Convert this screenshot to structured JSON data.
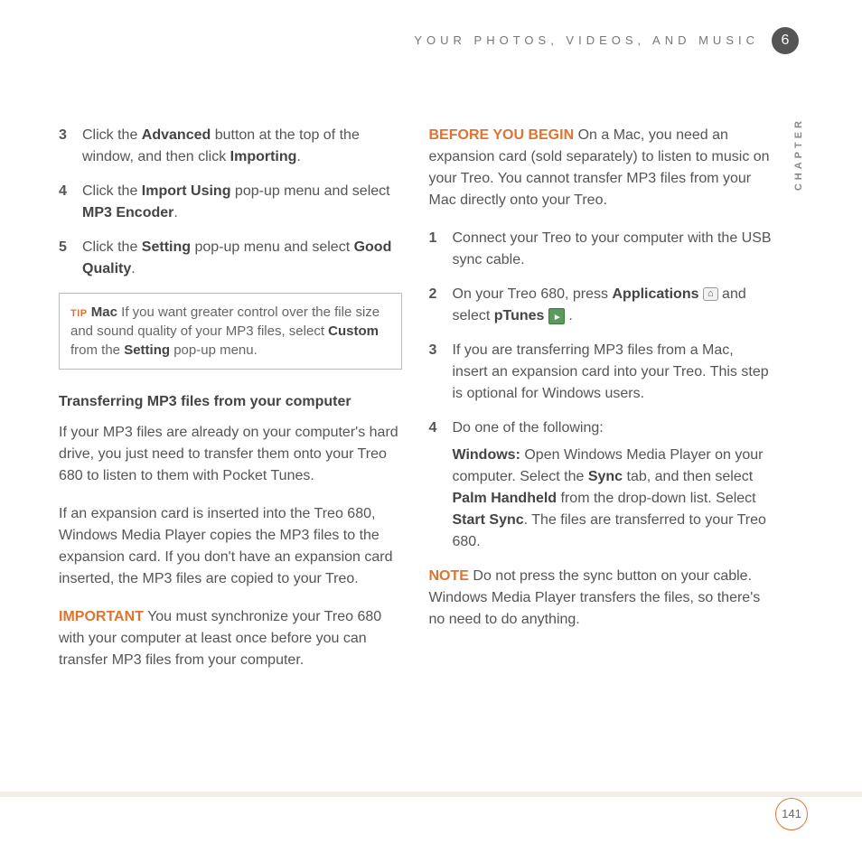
{
  "header": {
    "title": "YOUR PHOTOS, VIDEOS, AND MUSIC",
    "chapter_number": "6",
    "side_label": "CHAPTER"
  },
  "left": {
    "steps": [
      {
        "num": "3",
        "parts": [
          "Click the ",
          "Advanced",
          " button at the top of the window, and then click ",
          "Importing",
          "."
        ]
      },
      {
        "num": "4",
        "parts": [
          "Click the ",
          "Import Using",
          " pop-up menu and select ",
          "MP3 Encoder",
          "."
        ]
      },
      {
        "num": "5",
        "parts": [
          "Click the ",
          "Setting",
          " pop-up menu and select ",
          "Good Quality",
          "."
        ]
      }
    ],
    "tip": {
      "label": "TIP",
      "bold1": "Mac",
      "text1": "   If you want greater control over the file size and sound quality of your MP3 files, select ",
      "bold2": "Custom",
      "text2": " from the ",
      "bold3": "Setting",
      "text3": " pop-up menu."
    },
    "section_title": "Transferring MP3 files from your computer",
    "para1": "If your MP3 files are already on your computer's hard drive, you just need to transfer them onto your Treo 680 to listen to them with Pocket Tunes.",
    "para2": "If an expansion card is inserted into the Treo 680, Windows Media Player copies the MP3 files to the expansion card. If you don't have an expansion card inserted, the MP3 files are copied to your Treo.",
    "important": {
      "label": "IMPORTANT",
      "text": "  You must synchronize your Treo 680 with your computer at least once before you can transfer MP3 files from your computer."
    }
  },
  "right": {
    "before": {
      "label": "BEFORE YOU BEGIN",
      "text": "  On a Mac, you need an expansion card (sold separately) to listen to music on your Treo. You cannot transfer MP3 files from your Mac directly onto your Treo."
    },
    "steps": {
      "s1": {
        "num": "1",
        "text": "Connect your Treo to your computer with the USB sync cable."
      },
      "s2": {
        "num": "2",
        "t1": "On your Treo 680, press ",
        "b1": "Applications",
        "t2": " and select ",
        "b2": "pTunes",
        "t3": " ."
      },
      "s3": {
        "num": "3",
        "text": "If you are transferring MP3 files from a Mac, insert an expansion card into your Treo. This step is optional for Windows users."
      },
      "s4": {
        "num": "4",
        "lead": "Do one of the following:",
        "win_b1": "Windows:",
        "win_t1": " Open Windows Media Player on your computer. Select the ",
        "win_b2": "Sync",
        "win_t2": " tab, and then select ",
        "win_b3": "Palm Handheld",
        "win_t3": " from the drop-down list. Select ",
        "win_b4": "Start Sync",
        "win_t4": ". The files are transferred to your Treo 680."
      }
    },
    "note": {
      "label": "NOTE",
      "text": "  Do not press the sync button on your cable. Windows Media Player transfers the files, so there's no need to do anything."
    }
  },
  "page_number": "141"
}
